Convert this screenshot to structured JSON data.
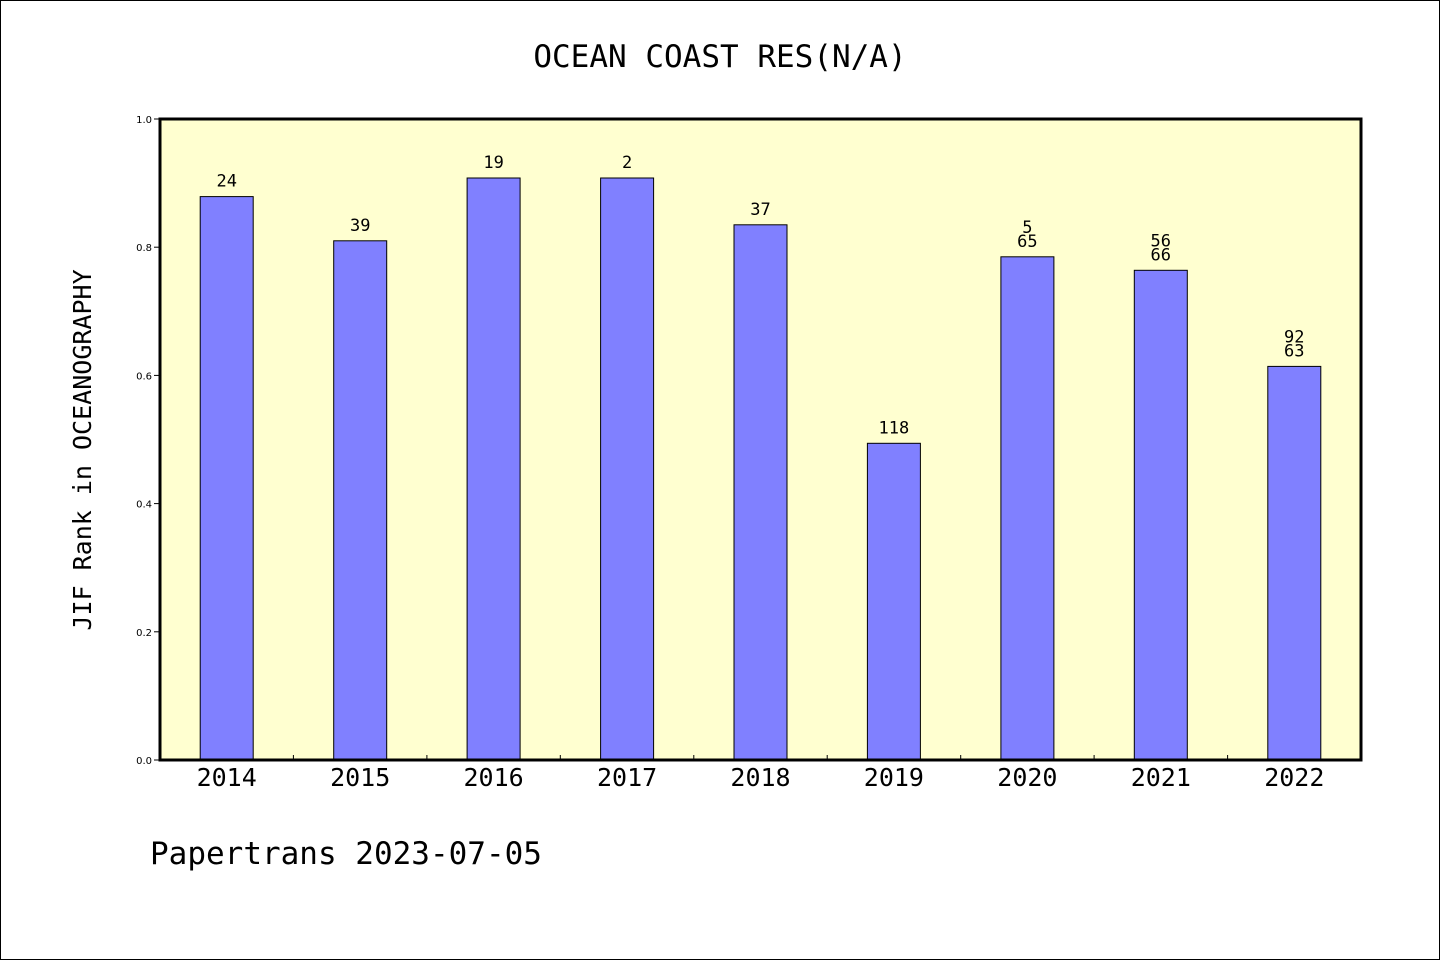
{
  "chart_data": {
    "type": "bar",
    "title": "OCEAN COAST RES(N/A)",
    "ylabel": "JIF Rank in OCEANOGRAPHY",
    "xlabel": "",
    "footer": "Papertrans 2023-07-05",
    "ylim": [
      0.0,
      1.0
    ],
    "yticks": [
      "0.0",
      "0.2",
      "0.4",
      "0.6",
      "0.8",
      "1.0"
    ],
    "categories": [
      "2014",
      "2015",
      "2016",
      "2017",
      "2018",
      "2019",
      "2020",
      "2021",
      "2022"
    ],
    "values": [
      0.879,
      0.81,
      0.908,
      0.908,
      0.835,
      0.494,
      0.785,
      0.764,
      0.614
    ],
    "labels": [
      [
        "24"
      ],
      [
        "39"
      ],
      [
        "19"
      ],
      [
        "2"
      ],
      [
        "37"
      ],
      [
        "118"
      ],
      [
        "5",
        "65"
      ],
      [
        "56",
        "66"
      ],
      [
        "92",
        "63"
      ]
    ],
    "grid": false,
    "legend": "none",
    "colors": {
      "bar": "#8080ff",
      "plot_background": "#ffffd0",
      "bar_edge": "#000000"
    }
  }
}
